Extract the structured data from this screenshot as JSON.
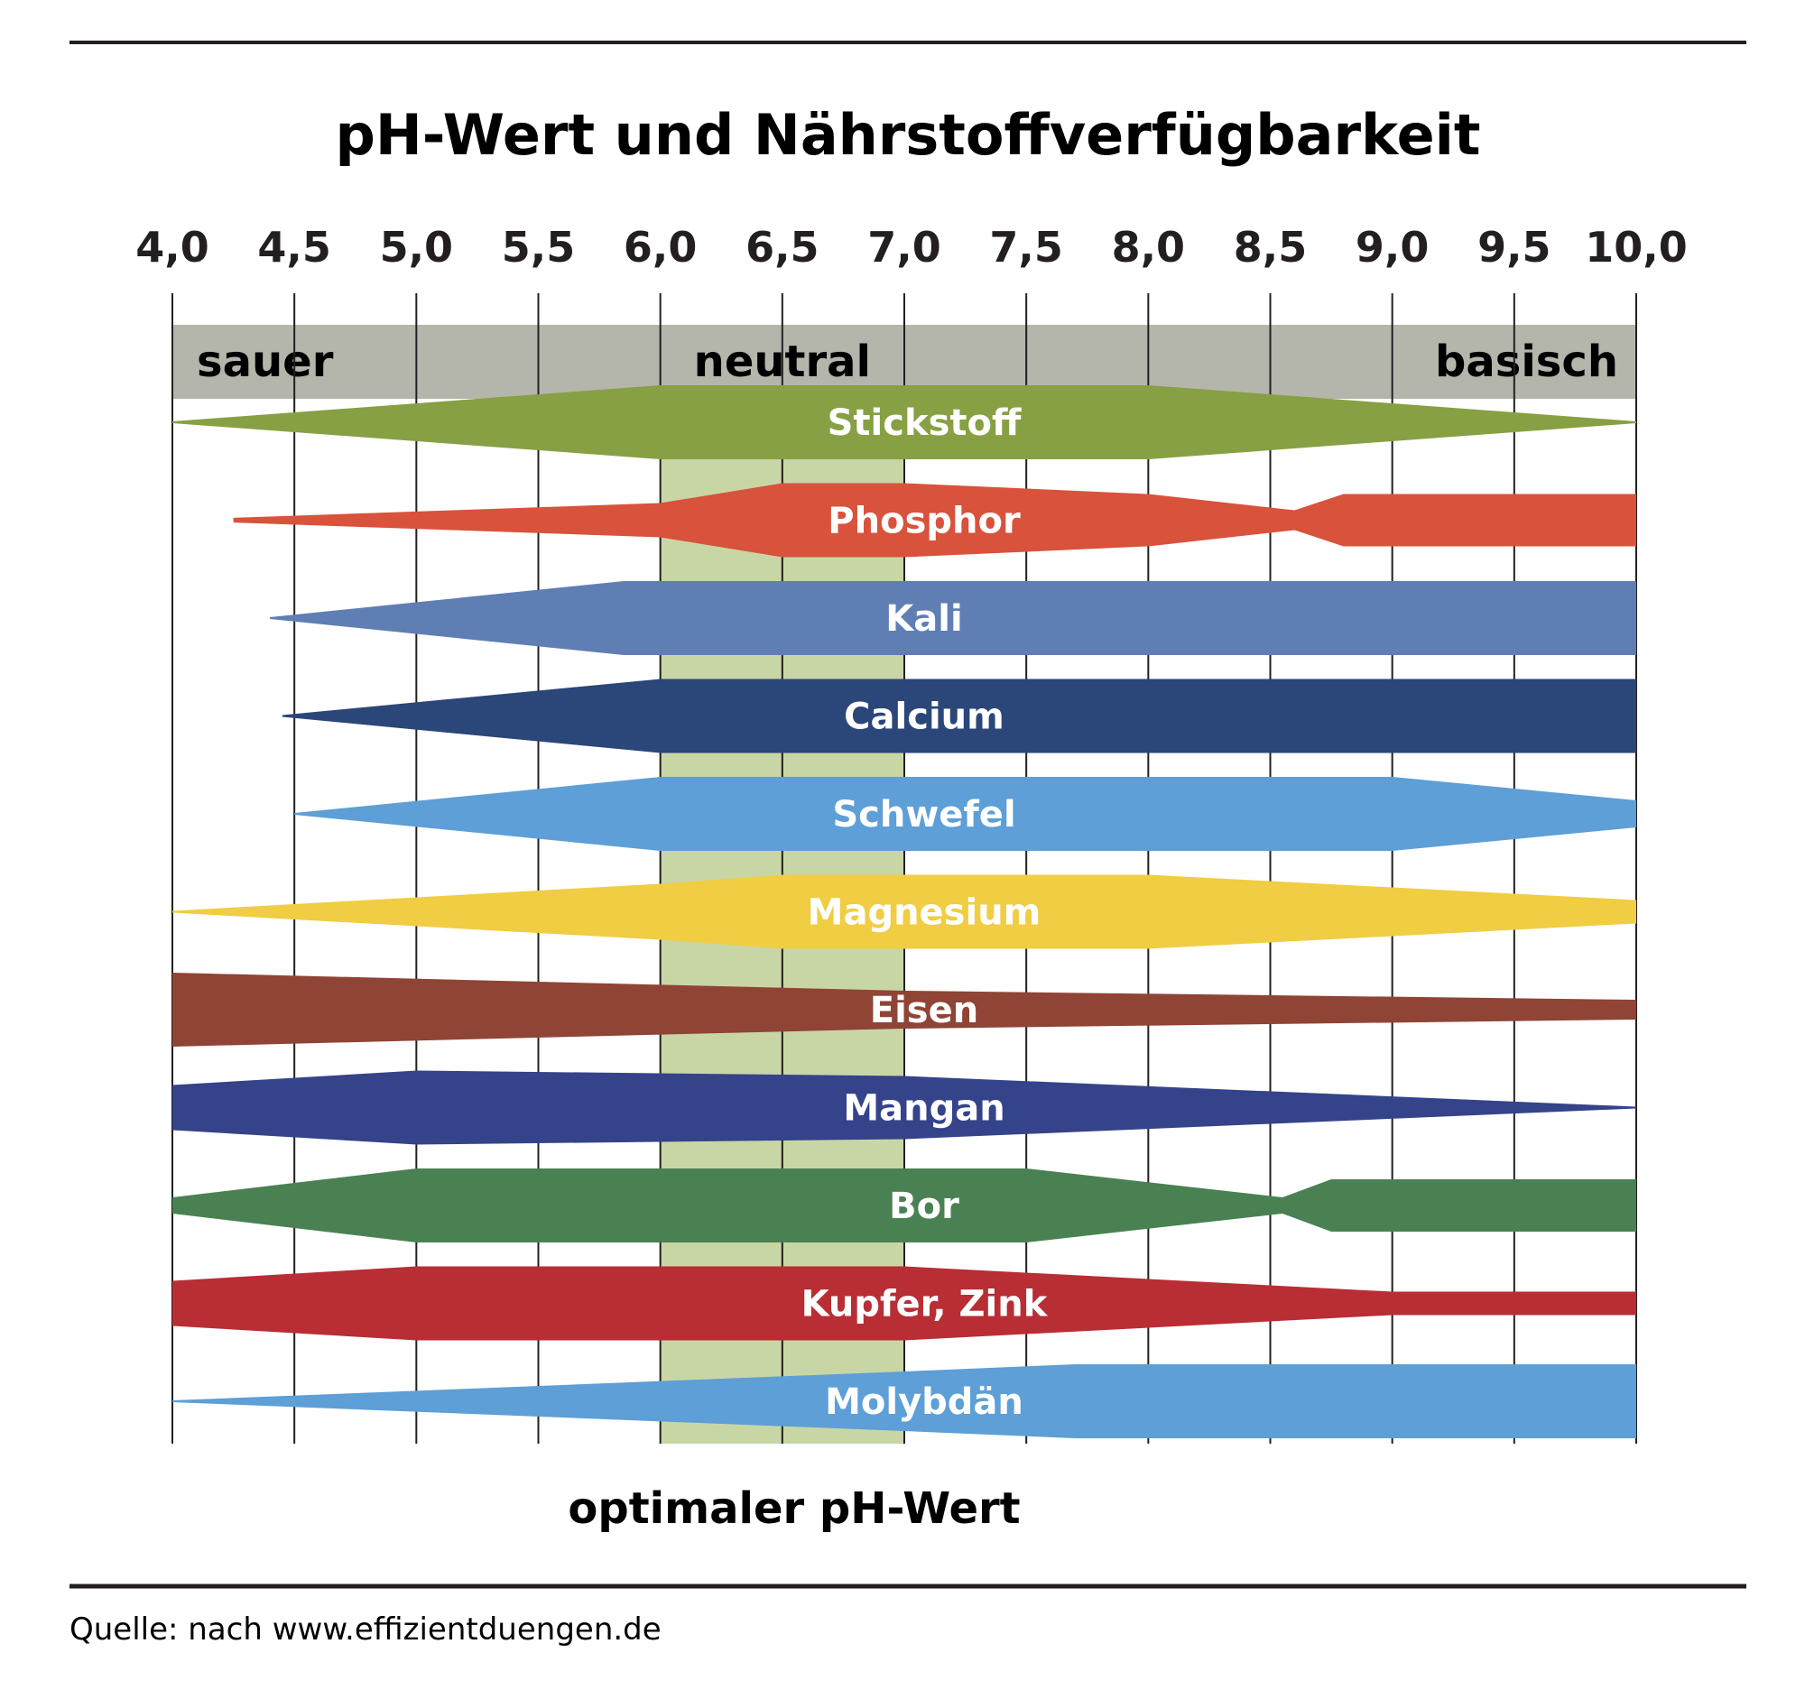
{
  "chart_data": {
    "type": "area",
    "title": "pH-Wert und Nährstoffverfügbarkeit",
    "x_ticks": [
      "4,0",
      "4,5",
      "5,0",
      "5,5",
      "6,0",
      "6,5",
      "7,0",
      "7,5",
      "8,0",
      "8,5",
      "9,0",
      "9,5",
      "10,0"
    ],
    "xlim": [
      4.0,
      10.0
    ],
    "zones": {
      "left": "sauer",
      "center": "neutral",
      "right": "basisch"
    },
    "optimal_range": [
      6.0,
      7.0
    ],
    "optimal_label": "optimaler pH-Wert",
    "grid": true,
    "series": [
      {
        "name": "Stickstoff",
        "color": "#87a043",
        "availability": [
          [
            4.0,
            0.0
          ],
          [
            6.0,
            1.0
          ],
          [
            8.0,
            1.0
          ],
          [
            10.0,
            0.0
          ]
        ]
      },
      {
        "name": "Phosphor",
        "color": "#d9523b",
        "availability": [
          [
            4.25,
            0.04
          ],
          [
            6.0,
            0.45
          ],
          [
            6.5,
            1.0
          ],
          [
            7.0,
            1.0
          ],
          [
            8.0,
            0.7
          ],
          [
            8.6,
            0.25
          ],
          [
            8.8,
            0.7
          ],
          [
            10.0,
            0.7
          ]
        ]
      },
      {
        "name": "Kali",
        "color": "#5f7eb3",
        "availability": [
          [
            4.4,
            0.0
          ],
          [
            5.85,
            1.0
          ],
          [
            10.0,
            1.0
          ]
        ]
      },
      {
        "name": "Calcium",
        "color": "#2b4679",
        "availability": [
          [
            4.45,
            0.0
          ],
          [
            6.0,
            1.0
          ],
          [
            10.0,
            1.0
          ]
        ]
      },
      {
        "name": "Schwefel",
        "color": "#5d9fd6",
        "availability": [
          [
            4.5,
            0.0
          ],
          [
            6.0,
            1.0
          ],
          [
            9.0,
            1.0
          ],
          [
            10.0,
            0.35
          ]
        ]
      },
      {
        "name": "Magnesium",
        "color": "#f0cd42",
        "availability": [
          [
            4.0,
            0.0
          ],
          [
            6.0,
            0.75
          ],
          [
            6.5,
            1.0
          ],
          [
            8.0,
            1.0
          ],
          [
            10.0,
            0.3
          ]
        ]
      },
      {
        "name": "Eisen",
        "color": "#8f4435",
        "availability": [
          [
            4.0,
            1.0
          ],
          [
            7.0,
            0.5
          ],
          [
            10.0,
            0.25
          ]
        ]
      },
      {
        "name": "Mangan",
        "color": "#35438a",
        "availability": [
          [
            4.0,
            0.6
          ],
          [
            5.0,
            1.0
          ],
          [
            7.0,
            0.85
          ],
          [
            10.0,
            0.0
          ]
        ]
      },
      {
        "name": "Bor",
        "color": "#4a8153",
        "availability": [
          [
            4.0,
            0.2
          ],
          [
            5.0,
            1.0
          ],
          [
            7.5,
            1.0
          ],
          [
            8.55,
            0.2
          ],
          [
            8.75,
            0.7
          ],
          [
            10.0,
            0.7
          ]
        ]
      },
      {
        "name": "Kupfer, Zink",
        "color": "#b82e34",
        "availability": [
          [
            4.0,
            0.6
          ],
          [
            5.0,
            1.0
          ],
          [
            7.0,
            1.0
          ],
          [
            9.0,
            0.3
          ],
          [
            10.0,
            0.3
          ]
        ]
      },
      {
        "name": "Molybdän",
        "color": "#5d9fd6",
        "availability": [
          [
            4.0,
            0.0
          ],
          [
            7.0,
            0.8
          ],
          [
            7.7,
            1.0
          ],
          [
            10.0,
            1.0
          ]
        ]
      }
    ]
  },
  "colors": {
    "zone_bar": "#b4b5ab",
    "optimal_band": "#c8d6a6",
    "text": "#231f20",
    "band_text": "#ffffff"
  },
  "source": "Quelle: nach www.effizientduengen.de"
}
